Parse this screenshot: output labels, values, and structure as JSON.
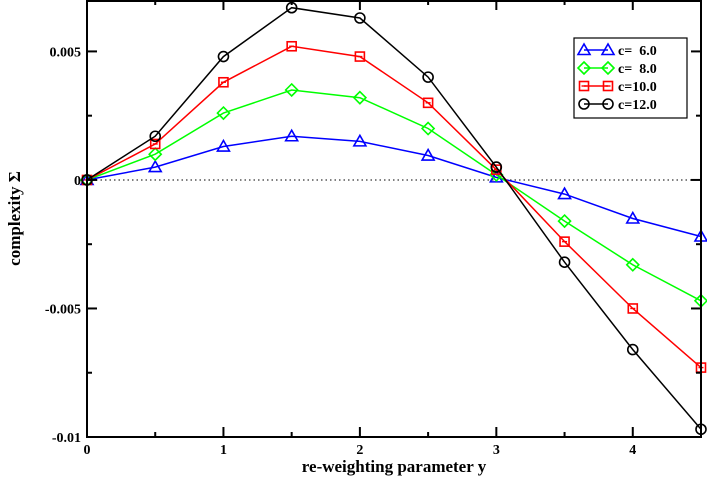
{
  "chart_data": {
    "type": "line",
    "xlabel": "re-weighting parameter y",
    "ylabel": "complexity Σ",
    "xlim": [
      0,
      4.5
    ],
    "ylim": [
      -0.01,
      0.007
    ],
    "xticks": [
      0,
      1,
      2,
      3,
      4
    ],
    "xtick_labels": [
      "0",
      "1",
      "2",
      "3",
      "4"
    ],
    "yticks": [
      -0.01,
      -0.005,
      0,
      0.005
    ],
    "ytick_labels": [
      "-0.01",
      "-0.005",
      "0",
      "0.005"
    ],
    "zero_line": "dotted",
    "grid": false,
    "legend_position": "top-right",
    "x": [
      0,
      0.5,
      1,
      1.5,
      2,
      2.5,
      3,
      3.5,
      4,
      4.5
    ],
    "series": [
      {
        "name": "c=  6.0",
        "color": "#0000ff",
        "marker": "triangle",
        "values": [
          0,
          0.0005,
          0.0013,
          0.0017,
          0.0015,
          0.00095,
          0.0001,
          -0.00055,
          -0.0015,
          -0.0022
        ]
      },
      {
        "name": "c=  8.0",
        "color": "#00ff00",
        "marker": "diamond",
        "values": [
          0,
          0.001,
          0.0026,
          0.0035,
          0.0032,
          0.002,
          0.0002,
          -0.0016,
          -0.0033,
          -0.0047
        ]
      },
      {
        "name": "c=10.0",
        "color": "#ff0000",
        "marker": "square",
        "values": [
          0,
          0.0014,
          0.0038,
          0.0052,
          0.0048,
          0.003,
          0.0004,
          -0.0024,
          -0.005,
          -0.0073
        ]
      },
      {
        "name": "c=12.0",
        "color": "#000000",
        "marker": "circle",
        "values": [
          0,
          0.0017,
          0.0048,
          0.0067,
          0.0063,
          0.004,
          0.0005,
          -0.0032,
          -0.0066,
          -0.0097
        ]
      }
    ]
  }
}
